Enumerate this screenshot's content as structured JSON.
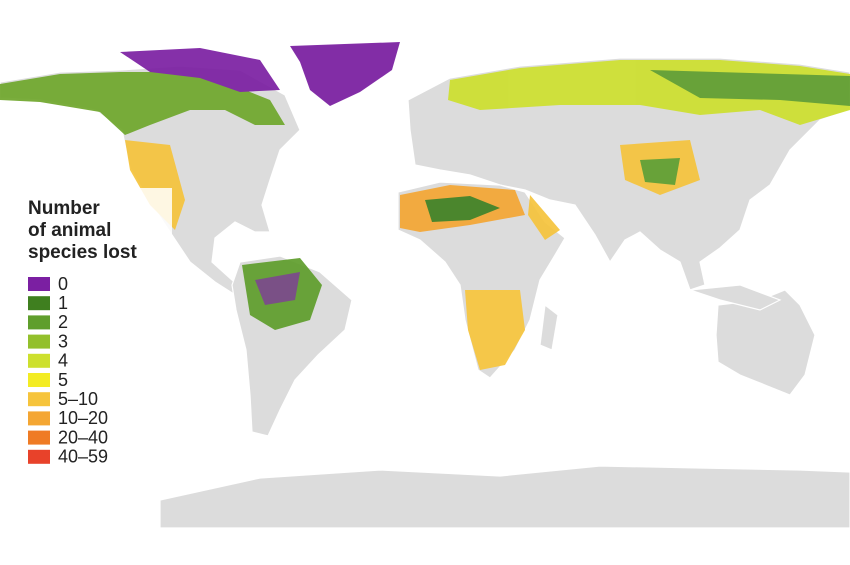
{
  "legend": {
    "title_lines": [
      "Number",
      "of animal",
      "species lost"
    ],
    "items": [
      {
        "label": "0",
        "color": "#7b1fa2"
      },
      {
        "label": "1",
        "color": "#3f7f1f"
      },
      {
        "label": "2",
        "color": "#5f9e2c"
      },
      {
        "label": "3",
        "color": "#93c02c"
      },
      {
        "label": "4",
        "color": "#cde02e"
      },
      {
        "label": "5",
        "color": "#f3ec24"
      },
      {
        "label": "5–10",
        "color": "#f6c43c"
      },
      {
        "label": "10–20",
        "color": "#f4a633"
      },
      {
        "label": "20–40",
        "color": "#ef7b24"
      },
      {
        "label": "40–59",
        "color": "#e8422a"
      }
    ]
  }
}
